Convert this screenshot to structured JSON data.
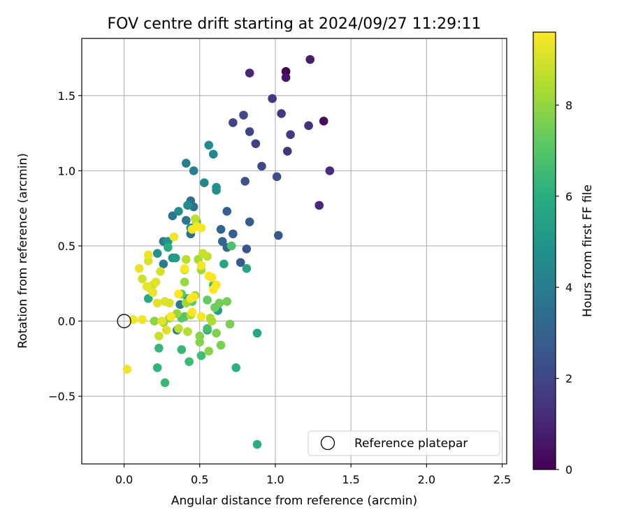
{
  "chart_data": {
    "type": "scatter",
    "title": "FOV centre drift starting at 2024/09/27 11:29:11",
    "xlabel": "Angular distance from reference (arcmin)",
    "ylabel": "Rotation from reference (arcmin)",
    "xlim": [
      -0.28,
      2.53
    ],
    "ylim": [
      -0.95,
      1.88
    ],
    "xticks": [
      0.0,
      0.5,
      1.0,
      1.5,
      2.0,
      2.5
    ],
    "xtick_labels": [
      "0.0",
      "0.5",
      "1.0",
      "1.5",
      "2.0",
      "2.5"
    ],
    "yticks": [
      -0.5,
      0.0,
      0.5,
      1.0,
      1.5
    ],
    "ytick_labels": [
      "−0.5",
      "0.0",
      "0.5",
      "1.0",
      "1.5"
    ],
    "grid": true,
    "legend": {
      "position": "lower-right",
      "entries": [
        "Reference platepar"
      ]
    },
    "reference_point": {
      "x": 0.0,
      "y": 0.0,
      "marker": "open-circle"
    },
    "colorbar": {
      "label": "Hours from first FF file",
      "colormap": "viridis",
      "min": 0,
      "max": 9.6,
      "ticks": [
        0,
        2,
        4,
        6,
        8
      ],
      "tick_labels": [
        "0",
        "2",
        "4",
        "6",
        "8"
      ]
    },
    "points": [
      [
        1.07,
        1.66,
        0.0
      ],
      [
        1.32,
        1.33,
        0.3
      ],
      [
        1.07,
        1.62,
        0.6
      ],
      [
        1.23,
        1.74,
        0.8
      ],
      [
        0.83,
        1.65,
        1.0
      ],
      [
        1.29,
        0.77,
        1.1
      ],
      [
        1.36,
        1.0,
        1.2
      ],
      [
        1.22,
        1.3,
        1.3
      ],
      [
        1.08,
        1.13,
        1.4
      ],
      [
        1.04,
        1.38,
        1.5
      ],
      [
        0.98,
        1.48,
        1.6
      ],
      [
        1.1,
        1.24,
        1.7
      ],
      [
        0.87,
        1.18,
        1.8
      ],
      [
        0.72,
        1.32,
        1.9
      ],
      [
        0.83,
        1.26,
        2.0
      ],
      [
        0.91,
        1.03,
        2.1
      ],
      [
        0.79,
        1.37,
        2.2
      ],
      [
        1.01,
        0.96,
        2.3
      ],
      [
        0.8,
        0.93,
        2.4
      ],
      [
        0.81,
        0.48,
        2.5
      ],
      [
        1.02,
        0.57,
        2.6
      ],
      [
        0.83,
        0.66,
        2.7
      ],
      [
        0.77,
        0.39,
        2.8
      ],
      [
        0.72,
        0.58,
        2.9
      ],
      [
        0.68,
        0.73,
        3.0
      ],
      [
        0.64,
        0.61,
        3.1
      ],
      [
        0.65,
        0.53,
        3.2
      ],
      [
        0.68,
        0.49,
        3.3
      ],
      [
        0.44,
        0.8,
        3.4
      ],
      [
        0.44,
        0.58,
        3.5
      ],
      [
        0.46,
        0.76,
        3.6
      ],
      [
        0.41,
        0.67,
        3.7
      ],
      [
        0.32,
        0.7,
        3.8
      ],
      [
        0.26,
        0.53,
        3.9
      ],
      [
        0.26,
        0.38,
        4.0
      ],
      [
        0.37,
        0.11,
        4.0
      ],
      [
        0.35,
        -0.06,
        4.1
      ],
      [
        0.41,
        1.05,
        4.1
      ],
      [
        0.46,
        1.0,
        4.2
      ],
      [
        0.53,
        0.92,
        4.3
      ],
      [
        0.59,
        1.11,
        4.4
      ],
      [
        0.56,
        1.17,
        4.5
      ],
      [
        0.42,
        0.77,
        4.6
      ],
      [
        0.36,
        0.73,
        4.6
      ],
      [
        0.61,
        0.87,
        4.7
      ],
      [
        0.61,
        0.89,
        4.8
      ],
      [
        0.44,
        0.62,
        4.8
      ],
      [
        0.22,
        0.45,
        4.9
      ],
      [
        0.29,
        0.53,
        5.0
      ],
      [
        0.32,
        0.42,
        5.1
      ],
      [
        0.34,
        0.42,
        5.2
      ],
      [
        0.62,
        0.07,
        5.3
      ],
      [
        0.55,
        -0.06,
        5.4
      ],
      [
        0.42,
        0.15,
        5.5
      ],
      [
        0.81,
        0.35,
        5.6
      ],
      [
        0.88,
        -0.08,
        5.6
      ],
      [
        0.66,
        0.38,
        5.7
      ],
      [
        0.16,
        0.15,
        5.8
      ],
      [
        0.29,
        0.49,
        5.9
      ],
      [
        0.88,
        -0.82,
        6.0
      ],
      [
        0.74,
        -0.31,
        6.1
      ],
      [
        0.22,
        -0.31,
        6.2
      ],
      [
        0.23,
        -0.18,
        6.3
      ],
      [
        0.27,
        -0.41,
        6.4
      ],
      [
        0.38,
        -0.19,
        6.4
      ],
      [
        0.43,
        -0.27,
        6.5
      ],
      [
        0.51,
        -0.23,
        6.6
      ],
      [
        0.55,
        -0.05,
        6.7
      ],
      [
        0.59,
        0.24,
        6.7
      ],
      [
        0.71,
        0.5,
        6.8
      ],
      [
        0.48,
        0.66,
        6.9
      ],
      [
        0.38,
        0.02,
        7.0
      ],
      [
        0.4,
        0.03,
        7.0
      ],
      [
        0.38,
        0.18,
        7.1
      ],
      [
        0.45,
        0.13,
        7.2
      ],
      [
        0.55,
        0.14,
        7.3
      ],
      [
        0.6,
        0.09,
        7.4
      ],
      [
        0.63,
        0.12,
        7.5
      ],
      [
        0.68,
        0.13,
        7.5
      ],
      [
        0.64,
        -0.16,
        7.6
      ],
      [
        0.7,
        -0.02,
        7.6
      ],
      [
        0.61,
        -0.08,
        7.7
      ],
      [
        0.5,
        -0.14,
        7.8
      ],
      [
        0.5,
        -0.1,
        7.8
      ],
      [
        0.56,
        -0.2,
        7.9
      ],
      [
        0.2,
        0.0,
        7.9
      ],
      [
        0.26,
        -0.01,
        8.0
      ],
      [
        0.3,
        0.02,
        8.0
      ],
      [
        0.35,
        0.05,
        8.1
      ],
      [
        0.4,
        0.26,
        8.1
      ],
      [
        0.41,
        0.12,
        8.2
      ],
      [
        0.47,
        0.17,
        8.2
      ],
      [
        0.51,
        0.34,
        8.3
      ],
      [
        0.49,
        0.41,
        8.3
      ],
      [
        0.57,
        0.02,
        8.4
      ],
      [
        0.58,
        0.0,
        8.4
      ],
      [
        0.42,
        -0.07,
        8.5
      ],
      [
        0.44,
        0.04,
        8.5
      ],
      [
        0.36,
        -0.05,
        8.6
      ],
      [
        0.41,
        0.41,
        8.6
      ],
      [
        0.55,
        0.43,
        8.7
      ],
      [
        0.47,
        0.68,
        8.7
      ],
      [
        0.4,
        0.34,
        8.8
      ],
      [
        0.52,
        0.45,
        8.8
      ],
      [
        0.23,
        -0.1,
        8.8
      ],
      [
        0.19,
        0.24,
        8.9
      ],
      [
        0.12,
        0.28,
        8.9
      ],
      [
        0.16,
        0.4,
        9.0
      ],
      [
        0.17,
        0.22,
        9.0
      ],
      [
        0.24,
        0.33,
        9.0
      ],
      [
        0.3,
        0.12,
        9.1
      ],
      [
        0.27,
        0.13,
        9.1
      ],
      [
        0.28,
        -0.06,
        9.1
      ],
      [
        0.22,
        0.12,
        9.2
      ],
      [
        0.25,
        0.0,
        9.2
      ],
      [
        0.21,
        0.26,
        9.2
      ],
      [
        0.19,
        0.19,
        9.3
      ],
      [
        0.15,
        0.23,
        9.3
      ],
      [
        0.16,
        0.44,
        9.3
      ],
      [
        0.1,
        0.35,
        9.3
      ],
      [
        0.06,
        0.01,
        9.4
      ],
      [
        0.12,
        0.01,
        9.4
      ],
      [
        0.02,
        -0.32,
        9.4
      ],
      [
        0.33,
        0.56,
        9.4
      ],
      [
        0.45,
        0.61,
        9.5
      ],
      [
        0.48,
        0.63,
        9.5
      ],
      [
        0.51,
        0.62,
        9.5
      ],
      [
        0.44,
        0.15,
        9.5
      ],
      [
        0.45,
        0.06,
        9.5
      ],
      [
        0.51,
        0.03,
        9.5
      ],
      [
        0.51,
        0.37,
        9.5
      ],
      [
        0.58,
        0.29,
        9.5
      ],
      [
        0.59,
        0.21,
        9.6
      ],
      [
        0.61,
        0.24,
        9.6
      ],
      [
        0.56,
        0.3,
        9.6
      ],
      [
        0.36,
        0.18,
        9.6
      ],
      [
        0.31,
        0.03,
        9.6
      ],
      [
        0.4,
        0.35,
        9.6
      ],
      [
        0.46,
        0.16,
        9.6
      ]
    ]
  }
}
